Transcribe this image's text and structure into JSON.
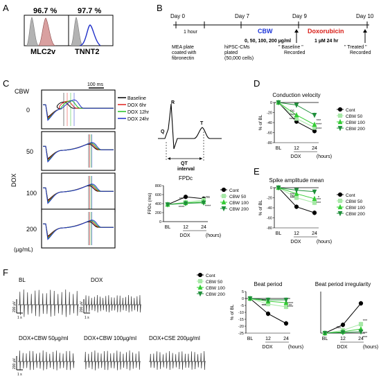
{
  "panelA": {
    "letter": "A",
    "left": {
      "pct": "96.7 %",
      "label": "MLC2v"
    },
    "right": {
      "pct": "97.7 %",
      "label": "TNNT2"
    }
  },
  "panelB": {
    "letter": "B",
    "day0": "Day 0",
    "day7": "Day 7",
    "day9": "Day 9",
    "day10": "Day 10",
    "hour": "1 hour",
    "cbw": "CBW",
    "cbw_doses": "0, 50, 100, 200 µg/ml",
    "dox": "Doxorubicin",
    "dox_dose": "1 µM 24 hr",
    "mea_lines": [
      "MEA plate",
      "coated with",
      "fibronectin"
    ],
    "hipsc_lines": [
      "hiPSC-CMs",
      "plated",
      "(50,000 cells)"
    ],
    "baseline_lines": [
      "\" Baseline \"",
      "Recorded"
    ],
    "treated_lines": [
      "\" Treated \"",
      "Recorded"
    ]
  },
  "panelC": {
    "letter": "C",
    "cbw_label": "CBW",
    "dox_label": "DOX",
    "unit_label": "(µg/mL)",
    "scale": "100 ms",
    "rows": [
      "0",
      "50",
      "100",
      "200"
    ],
    "legend": [
      {
        "name": "Baseline",
        "color": "#000000"
      },
      {
        "name": "DOX 6hr",
        "color": "#e0201a"
      },
      {
        "name": "DOX 12hr",
        "color": "#22c022"
      },
      {
        "name": "DOX 24hr",
        "color": "#1f2fc8"
      }
    ],
    "schematic": {
      "R": "R",
      "Q": "Q",
      "T": "T",
      "qt": [
        "QT",
        "interval"
      ]
    }
  },
  "chart_data": [
    {
      "id": "fpdc",
      "type": "line",
      "title": "FPDc",
      "ylabel": "FPDc (ms)",
      "categories": [
        "BL",
        "12",
        "24"
      ],
      "xgroup": "DOX",
      "xunit": "(hours)",
      "ylim": [
        0,
        800
      ],
      "yticks": [
        0,
        200,
        400,
        600,
        800
      ],
      "series": [
        {
          "name": "Cont",
          "color": "#000000",
          "marker": "circle",
          "values": [
            380,
            550,
            510
          ]
        },
        {
          "name": "CBW 50",
          "color": "#a6e8a6",
          "marker": "square",
          "values": [
            380,
            430,
            480
          ]
        },
        {
          "name": "CBW 100",
          "color": "#33cc33",
          "marker": "triangle",
          "values": [
            380,
            415,
            440
          ]
        },
        {
          "name": "CBW 200",
          "color": "#1f8f3a",
          "marker": "triangle-down",
          "values": [
            380,
            405,
            420
          ]
        }
      ],
      "annotations": [
        {
          "x": "12",
          "label": "***"
        },
        {
          "x": "12",
          "label": "****"
        },
        {
          "x": "24",
          "label": "ns"
        },
        {
          "x": "24",
          "label": "****"
        }
      ]
    },
    {
      "id": "cv",
      "type": "line",
      "title": "Conduction velocity",
      "ylabel": "% of BL",
      "categories": [
        "BL",
        "12",
        "24"
      ],
      "xgroup": "DOX",
      "xunit": "(hours)",
      "ylim": [
        -80,
        0
      ],
      "yticks": [
        0,
        -20,
        -40,
        -60,
        -80
      ],
      "series": [
        {
          "name": "Cont",
          "color": "#000000",
          "marker": "circle",
          "values": [
            0,
            -38,
            -57
          ]
        },
        {
          "name": "CBW 50",
          "color": "#a6e8a6",
          "marker": "square",
          "values": [
            0,
            -32,
            -50
          ]
        },
        {
          "name": "CBW 100",
          "color": "#33cc33",
          "marker": "triangle",
          "values": [
            0,
            -25,
            -44
          ]
        },
        {
          "name": "CBW 200",
          "color": "#1f8f3a",
          "marker": "triangle-down",
          "values": [
            0,
            -5,
            -25
          ]
        }
      ],
      "annotations": [
        {
          "x": "12",
          "label": "****"
        },
        {
          "x": "12",
          "label": "****"
        },
        {
          "x": "12",
          "label": "ns"
        },
        {
          "x": "24",
          "label": "****"
        },
        {
          "x": "24",
          "label": "****"
        },
        {
          "x": "24",
          "label": "***"
        }
      ]
    },
    {
      "id": "spike",
      "type": "line",
      "title": "Spike amplitude mean",
      "ylabel": "% of BL",
      "categories": [
        "BL",
        "12",
        "24"
      ],
      "xgroup": "DOX",
      "xunit": "(hours)",
      "ylim": [
        -80,
        0
      ],
      "yticks": [
        0,
        -20,
        -40,
        -60,
        -80
      ],
      "series": [
        {
          "name": "Cont",
          "color": "#000000",
          "marker": "circle",
          "values": [
            0,
            -38,
            -50
          ]
        },
        {
          "name": "CBW 50",
          "color": "#a6e8a6",
          "marker": "square",
          "values": [
            0,
            -20,
            -30
          ]
        },
        {
          "name": "CBW 100",
          "color": "#33cc33",
          "marker": "triangle",
          "values": [
            0,
            -12,
            -22
          ]
        },
        {
          "name": "CBW 200",
          "color": "#1f8f3a",
          "marker": "triangle-down",
          "values": [
            0,
            -5,
            -8
          ]
        }
      ],
      "annotations": [
        {
          "x": "12",
          "label": "***"
        },
        {
          "x": "12",
          "label": "***"
        },
        {
          "x": "12",
          "label": "ns"
        },
        {
          "x": "24",
          "label": "***"
        },
        {
          "x": "24",
          "label": "***"
        },
        {
          "x": "24",
          "label": "*"
        }
      ]
    },
    {
      "id": "beat",
      "type": "line",
      "title": "Beat period",
      "ylabel": "% of BL",
      "categories": [
        "BL",
        "12",
        "24"
      ],
      "xgroup": "DOX",
      "xunit": "(hours)",
      "ylim": [
        -25,
        5
      ],
      "yticks": [
        5,
        0,
        -5,
        -10,
        -15,
        -20,
        -25
      ],
      "series": [
        {
          "name": "Cont",
          "color": "#000000",
          "marker": "circle",
          "values": [
            0,
            -11,
            -18
          ]
        },
        {
          "name": "CBW 50",
          "color": "#a6e8a6",
          "marker": "square",
          "values": [
            0,
            -4,
            -6
          ]
        },
        {
          "name": "CBW 100",
          "color": "#33cc33",
          "marker": "triangle",
          "values": [
            0,
            -2,
            -3
          ]
        },
        {
          "name": "CBW 200",
          "color": "#1f8f3a",
          "marker": "triangle-down",
          "values": [
            0,
            -1,
            -1
          ]
        }
      ],
      "annotations": [
        {
          "x": "12",
          "label": "***"
        },
        {
          "x": "12",
          "label": "***"
        },
        {
          "x": "12",
          "label": "***"
        },
        {
          "x": "24",
          "label": "****"
        },
        {
          "x": "24",
          "label": "****"
        },
        {
          "x": "24",
          "label": "**"
        }
      ]
    },
    {
      "id": "irreg",
      "type": "line",
      "title": "Beat period irregularity",
      "ylabel": "",
      "categories": [
        "BL",
        "12",
        "24"
      ],
      "xgroup": "DOX",
      "xunit": "(hours)",
      "ylim": [
        0,
        60
      ],
      "yticks": [],
      "series": [
        {
          "name": "Cont",
          "color": "#000000",
          "marker": "circle",
          "values": [
            0,
            12,
            43
          ]
        },
        {
          "name": "CBW 50",
          "color": "#a6e8a6",
          "marker": "square",
          "values": [
            0,
            4,
            13
          ]
        },
        {
          "name": "CBW 100",
          "color": "#33cc33",
          "marker": "triangle",
          "values": [
            0,
            2,
            6
          ]
        },
        {
          "name": "CBW 200",
          "color": "#1f8f3a",
          "marker": "triangle-down",
          "values": [
            0,
            1,
            2
          ]
        }
      ],
      "annotations": [
        {
          "x": "12",
          "label": "ns"
        },
        {
          "x": "24",
          "label": "***"
        },
        {
          "x": "24",
          "label": "***"
        },
        {
          "x": "24",
          "label": "***"
        }
      ]
    }
  ],
  "panelD": {
    "letter": "D"
  },
  "panelE": {
    "letter": "E"
  },
  "panelF": {
    "letter": "F",
    "traces": [
      {
        "label": "BL"
      },
      {
        "label": "DOX"
      },
      {
        "label": "DOX+CBW 50µg/ml"
      },
      {
        "label": "DOX+CBW 100µg/ml"
      },
      {
        "label": "DOX+CSE  200µg/ml"
      }
    ],
    "yscale": "200 µV",
    "xscale": "1 s"
  }
}
